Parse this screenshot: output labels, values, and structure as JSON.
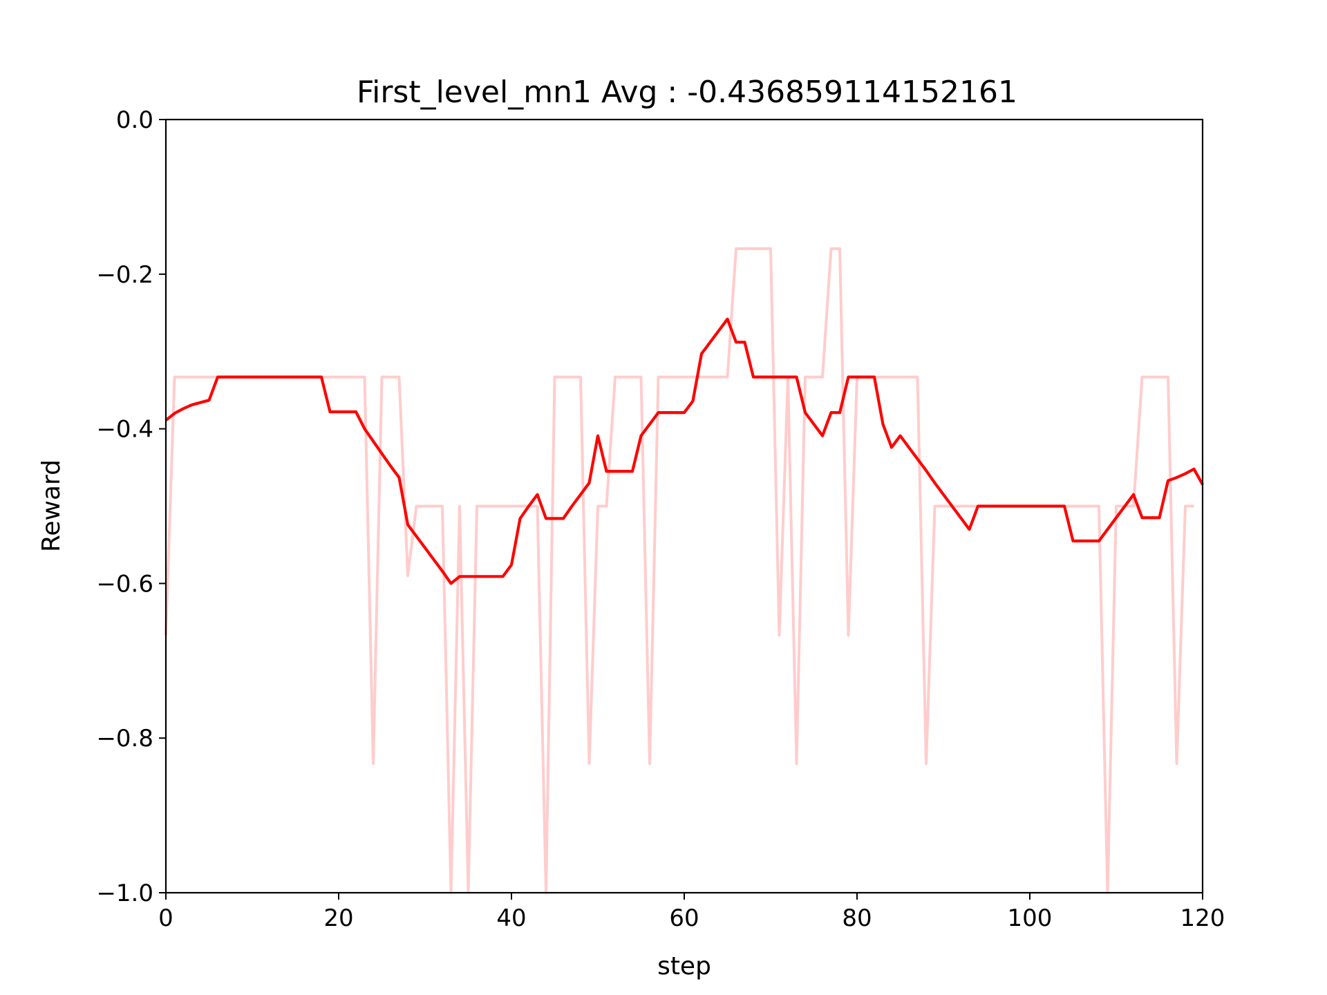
{
  "chart_data": {
    "type": "line",
    "title": "First_level_mn1 Avg : -0.436859114152161",
    "xlabel": "step",
    "ylabel": "Reward",
    "xlim": [
      0,
      120
    ],
    "ylim": [
      -1.0,
      0.0
    ],
    "xticks": [
      0,
      20,
      40,
      60,
      80,
      100,
      120
    ],
    "xtick_labels": [
      "0",
      "20",
      "40",
      "60",
      "80",
      "100",
      "120"
    ],
    "yticks": [
      0.0,
      -0.2,
      -0.4,
      -0.6,
      -0.8,
      -1.0
    ],
    "ytick_labels": [
      "0.0",
      "−0.2",
      "−0.4",
      "−0.6",
      "−0.8",
      "−1.0"
    ],
    "grid": false,
    "legend": "none",
    "series": [
      {
        "color": "#ffcccc",
        "style": "raw",
        "values": [
          -0.667,
          -0.333,
          -0.333,
          -0.333,
          -0.333,
          -0.333,
          -0.333,
          -0.333,
          -0.333,
          -0.333,
          -0.333,
          -0.333,
          -0.333,
          -0.333,
          -0.333,
          -0.333,
          -0.333,
          -0.333,
          -0.333,
          -0.333,
          -0.333,
          -0.333,
          -0.333,
          -0.333,
          -0.833,
          -0.333,
          -0.333,
          -0.333,
          -0.59,
          -0.5,
          -0.5,
          -0.5,
          -0.5,
          -1.0,
          -0.5,
          -1.0,
          -0.5,
          -0.5,
          -0.5,
          -0.5,
          -0.5,
          -0.5,
          -0.5,
          -0.5,
          -1.0,
          -0.333,
          -0.333,
          -0.333,
          -0.333,
          -0.833,
          -0.5,
          -0.5,
          -0.333,
          -0.333,
          -0.333,
          -0.333,
          -0.833,
          -0.333,
          -0.333,
          -0.333,
          -0.333,
          -0.333,
          -0.333,
          -0.333,
          -0.333,
          -0.333,
          -0.167,
          -0.167,
          -0.167,
          -0.167,
          -0.167,
          -0.667,
          -0.333,
          -0.833,
          -0.333,
          -0.333,
          -0.333,
          -0.167,
          -0.167,
          -0.667,
          -0.333,
          -0.333,
          -0.333,
          -0.333,
          -0.333,
          -0.333,
          -0.333,
          -0.333,
          -0.833,
          -0.5,
          -0.5,
          -0.5,
          -0.5,
          -0.5,
          -0.5,
          -0.5,
          -0.5,
          -0.5,
          -0.5,
          -0.5,
          -0.5,
          -0.5,
          -0.5,
          -0.5,
          -0.5,
          -0.5,
          -0.5,
          -0.5,
          -0.5,
          -1.0,
          -0.5,
          -0.5,
          -0.5,
          -0.333,
          -0.333,
          -0.333,
          -0.333,
          -0.833,
          -0.5,
          -0.5
        ]
      },
      {
        "color": "#ff0000",
        "style": "smoothed",
        "values": [
          -0.389,
          -0.38,
          -0.374,
          -0.369,
          -0.366,
          -0.363,
          -0.333,
          -0.333,
          -0.333,
          -0.333,
          -0.333,
          -0.333,
          -0.333,
          -0.333,
          -0.333,
          -0.333,
          -0.333,
          -0.333,
          -0.333,
          -0.378,
          -0.378,
          -0.378,
          -0.378,
          -0.4,
          -0.416,
          -0.432,
          -0.448,
          -0.463,
          -0.524,
          -0.539,
          -0.554,
          -0.569,
          -0.584,
          -0.6,
          -0.591,
          -0.591,
          -0.591,
          -0.591,
          -0.591,
          -0.591,
          -0.576,
          -0.516,
          -0.5,
          -0.485,
          -0.516,
          -0.516,
          -0.516,
          -0.5,
          -0.485,
          -0.47,
          -0.409,
          -0.455,
          -0.455,
          -0.455,
          -0.455,
          -0.409,
          -0.394,
          -0.379,
          -0.379,
          -0.379,
          -0.379,
          -0.364,
          -0.303,
          -0.288,
          -0.273,
          -0.258,
          -0.288,
          -0.288,
          -0.333,
          -0.333,
          -0.333,
          -0.333,
          -0.333,
          -0.333,
          -0.379,
          -0.394,
          -0.409,
          -0.379,
          -0.379,
          -0.333,
          -0.333,
          -0.333,
          -0.333,
          -0.394,
          -0.424,
          -0.409,
          -0.424,
          -0.439,
          -0.454,
          -0.47,
          -0.485,
          -0.5,
          -0.515,
          -0.53,
          -0.5,
          -0.5,
          -0.5,
          -0.5,
          -0.5,
          -0.5,
          -0.5,
          -0.5,
          -0.5,
          -0.5,
          -0.5,
          -0.545,
          -0.545,
          -0.545,
          -0.545,
          -0.53,
          -0.515,
          -0.5,
          -0.485,
          -0.515,
          -0.515,
          -0.515,
          -0.467,
          -0.463,
          -0.458,
          -0.452,
          -0.472
        ]
      }
    ]
  }
}
